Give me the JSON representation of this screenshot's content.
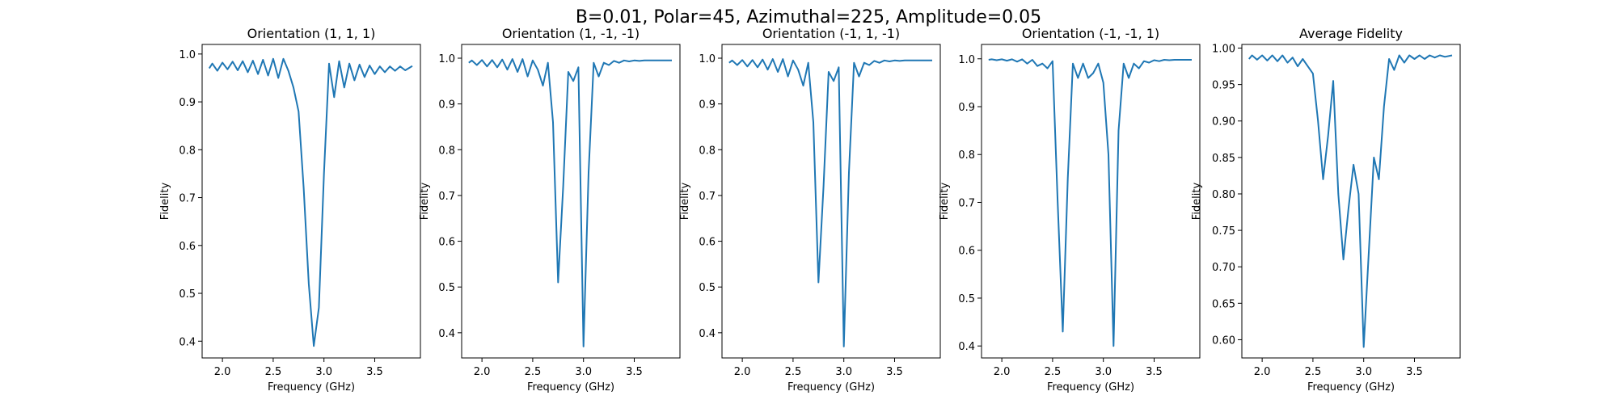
{
  "figure_title": "B=0.01, Polar=45, Azimuthal=225, Amplitude=0.05",
  "chart_data": [
    {
      "type": "line",
      "title": "Orientation (1, 1, 1)",
      "xlabel": "Frequency (GHz)",
      "ylabel": "Fidelity",
      "xlim": [
        1.8,
        3.95
      ],
      "ylim": [
        0.365,
        1.02
      ],
      "xticks": [
        2.0,
        2.5,
        3.0,
        3.5
      ],
      "yticks": [
        0.4,
        0.5,
        0.6,
        0.7,
        0.8,
        0.9,
        1.0
      ],
      "ytick_decimals": 1,
      "grid": false,
      "color": "#1f77b4",
      "series": [
        {
          "x": [
            1.87,
            1.9,
            1.95,
            2.0,
            2.05,
            2.1,
            2.15,
            2.2,
            2.25,
            2.3,
            2.35,
            2.4,
            2.45,
            2.5,
            2.55,
            2.6,
            2.65,
            2.7,
            2.75,
            2.8,
            2.85,
            2.9,
            2.95,
            3.0,
            3.05,
            3.1,
            3.15,
            3.2,
            3.25,
            3.3,
            3.35,
            3.4,
            3.45,
            3.5,
            3.55,
            3.6,
            3.65,
            3.7,
            3.75,
            3.8,
            3.87
          ],
          "y": [
            0.97,
            0.98,
            0.965,
            0.982,
            0.968,
            0.984,
            0.966,
            0.985,
            0.962,
            0.986,
            0.958,
            0.988,
            0.955,
            0.99,
            0.95,
            0.99,
            0.965,
            0.93,
            0.88,
            0.72,
            0.52,
            0.39,
            0.47,
            0.75,
            0.98,
            0.91,
            0.985,
            0.93,
            0.98,
            0.945,
            0.978,
            0.952,
            0.976,
            0.958,
            0.974,
            0.962,
            0.974,
            0.965,
            0.974,
            0.966,
            0.975
          ]
        }
      ]
    },
    {
      "type": "line",
      "title": "Orientation (1, -1, -1)",
      "xlabel": "Frequency (GHz)",
      "ylabel": "Fidelity",
      "xlim": [
        1.8,
        3.95
      ],
      "ylim": [
        0.345,
        1.03
      ],
      "xticks": [
        2.0,
        2.5,
        3.0,
        3.5
      ],
      "yticks": [
        0.4,
        0.5,
        0.6,
        0.7,
        0.8,
        0.9,
        1.0
      ],
      "ytick_decimals": 1,
      "grid": false,
      "color": "#1f77b4",
      "series": [
        {
          "x": [
            1.87,
            1.9,
            1.95,
            2.0,
            2.05,
            2.1,
            2.15,
            2.2,
            2.25,
            2.3,
            2.35,
            2.4,
            2.45,
            2.5,
            2.55,
            2.6,
            2.65,
            2.7,
            2.75,
            2.8,
            2.85,
            2.9,
            2.95,
            3.0,
            3.05,
            3.1,
            3.15,
            3.2,
            3.25,
            3.3,
            3.35,
            3.4,
            3.45,
            3.5,
            3.55,
            3.6,
            3.65,
            3.7,
            3.75,
            3.8,
            3.87
          ],
          "y": [
            0.99,
            0.995,
            0.985,
            0.996,
            0.982,
            0.996,
            0.98,
            0.997,
            0.975,
            0.998,
            0.97,
            0.998,
            0.96,
            0.995,
            0.975,
            0.94,
            0.99,
            0.86,
            0.51,
            0.72,
            0.97,
            0.95,
            0.98,
            0.37,
            0.75,
            0.99,
            0.96,
            0.99,
            0.985,
            0.994,
            0.99,
            0.995,
            0.993,
            0.995,
            0.994,
            0.995,
            0.995,
            0.995,
            0.995,
            0.995,
            0.995
          ]
        }
      ]
    },
    {
      "type": "line",
      "title": "Orientation (-1, 1, -1)",
      "xlabel": "Frequency (GHz)",
      "ylabel": "Fidelity",
      "xlim": [
        1.8,
        3.95
      ],
      "ylim": [
        0.345,
        1.03
      ],
      "xticks": [
        2.0,
        2.5,
        3.0,
        3.5
      ],
      "yticks": [
        0.4,
        0.5,
        0.6,
        0.7,
        0.8,
        0.9,
        1.0
      ],
      "ytick_decimals": 1,
      "grid": false,
      "color": "#1f77b4",
      "series": [
        {
          "x": [
            1.87,
            1.9,
            1.95,
            2.0,
            2.05,
            2.1,
            2.15,
            2.2,
            2.25,
            2.3,
            2.35,
            2.4,
            2.45,
            2.5,
            2.55,
            2.6,
            2.65,
            2.7,
            2.75,
            2.8,
            2.85,
            2.9,
            2.95,
            3.0,
            3.05,
            3.1,
            3.15,
            3.2,
            3.25,
            3.3,
            3.35,
            3.4,
            3.45,
            3.5,
            3.55,
            3.6,
            3.65,
            3.7,
            3.75,
            3.8,
            3.87
          ],
          "y": [
            0.99,
            0.995,
            0.985,
            0.996,
            0.982,
            0.996,
            0.98,
            0.997,
            0.975,
            0.998,
            0.97,
            0.998,
            0.96,
            0.995,
            0.975,
            0.94,
            0.99,
            0.86,
            0.51,
            0.72,
            0.97,
            0.95,
            0.98,
            0.37,
            0.75,
            0.99,
            0.96,
            0.99,
            0.985,
            0.994,
            0.99,
            0.995,
            0.993,
            0.995,
            0.994,
            0.995,
            0.995,
            0.995,
            0.995,
            0.995,
            0.995
          ]
        }
      ]
    },
    {
      "type": "line",
      "title": "Orientation (-1, -1, 1)",
      "xlabel": "Frequency (GHz)",
      "ylabel": "Fidelity",
      "xlim": [
        1.8,
        3.95
      ],
      "ylim": [
        0.375,
        1.03
      ],
      "xticks": [
        2.0,
        2.5,
        3.0,
        3.5
      ],
      "yticks": [
        0.4,
        0.5,
        0.6,
        0.7,
        0.8,
        0.9,
        1.0
      ],
      "ytick_decimals": 1,
      "grid": false,
      "color": "#1f77b4",
      "series": [
        {
          "x": [
            1.87,
            1.9,
            1.95,
            2.0,
            2.05,
            2.1,
            2.15,
            2.2,
            2.25,
            2.3,
            2.35,
            2.4,
            2.45,
            2.5,
            2.55,
            2.6,
            2.65,
            2.7,
            2.75,
            2.8,
            2.85,
            2.9,
            2.95,
            3.0,
            3.05,
            3.1,
            3.15,
            3.2,
            3.25,
            3.3,
            3.35,
            3.4,
            3.45,
            3.5,
            3.55,
            3.6,
            3.65,
            3.7,
            3.75,
            3.8,
            3.87
          ],
          "y": [
            0.998,
            0.999,
            0.997,
            0.999,
            0.996,
            0.999,
            0.994,
            0.999,
            0.99,
            0.998,
            0.985,
            0.99,
            0.98,
            0.995,
            0.7,
            0.43,
            0.75,
            0.99,
            0.96,
            0.99,
            0.96,
            0.97,
            0.99,
            0.95,
            0.8,
            0.4,
            0.85,
            0.99,
            0.96,
            0.99,
            0.98,
            0.995,
            0.992,
            0.997,
            0.995,
            0.998,
            0.997,
            0.998,
            0.998,
            0.998,
            0.998
          ]
        }
      ]
    },
    {
      "type": "line",
      "title": "Average Fidelity",
      "xlabel": "Frequency (GHz)",
      "ylabel": "Fidelity",
      "xlim": [
        1.8,
        3.95
      ],
      "ylim": [
        0.575,
        1.005
      ],
      "xticks": [
        2.0,
        2.5,
        3.0,
        3.5
      ],
      "yticks": [
        0.6,
        0.65,
        0.7,
        0.75,
        0.8,
        0.85,
        0.9,
        0.95,
        1.0
      ],
      "ytick_decimals": 2,
      "grid": false,
      "color": "#1f77b4",
      "series": [
        {
          "x": [
            1.87,
            1.9,
            1.95,
            2.0,
            2.05,
            2.1,
            2.15,
            2.2,
            2.25,
            2.3,
            2.35,
            2.4,
            2.45,
            2.5,
            2.55,
            2.6,
            2.65,
            2.7,
            2.75,
            2.8,
            2.85,
            2.9,
            2.95,
            3.0,
            3.05,
            3.1,
            3.15,
            3.2,
            3.25,
            3.3,
            3.35,
            3.4,
            3.45,
            3.5,
            3.55,
            3.6,
            3.65,
            3.7,
            3.75,
            3.8,
            3.87
          ],
          "y": [
            0.985,
            0.99,
            0.984,
            0.99,
            0.983,
            0.99,
            0.982,
            0.99,
            0.98,
            0.987,
            0.975,
            0.985,
            0.975,
            0.965,
            0.9,
            0.82,
            0.88,
            0.955,
            0.8,
            0.71,
            0.78,
            0.84,
            0.8,
            0.59,
            0.72,
            0.85,
            0.82,
            0.92,
            0.985,
            0.97,
            0.99,
            0.98,
            0.99,
            0.985,
            0.99,
            0.985,
            0.99,
            0.987,
            0.99,
            0.988,
            0.99
          ]
        }
      ]
    }
  ]
}
